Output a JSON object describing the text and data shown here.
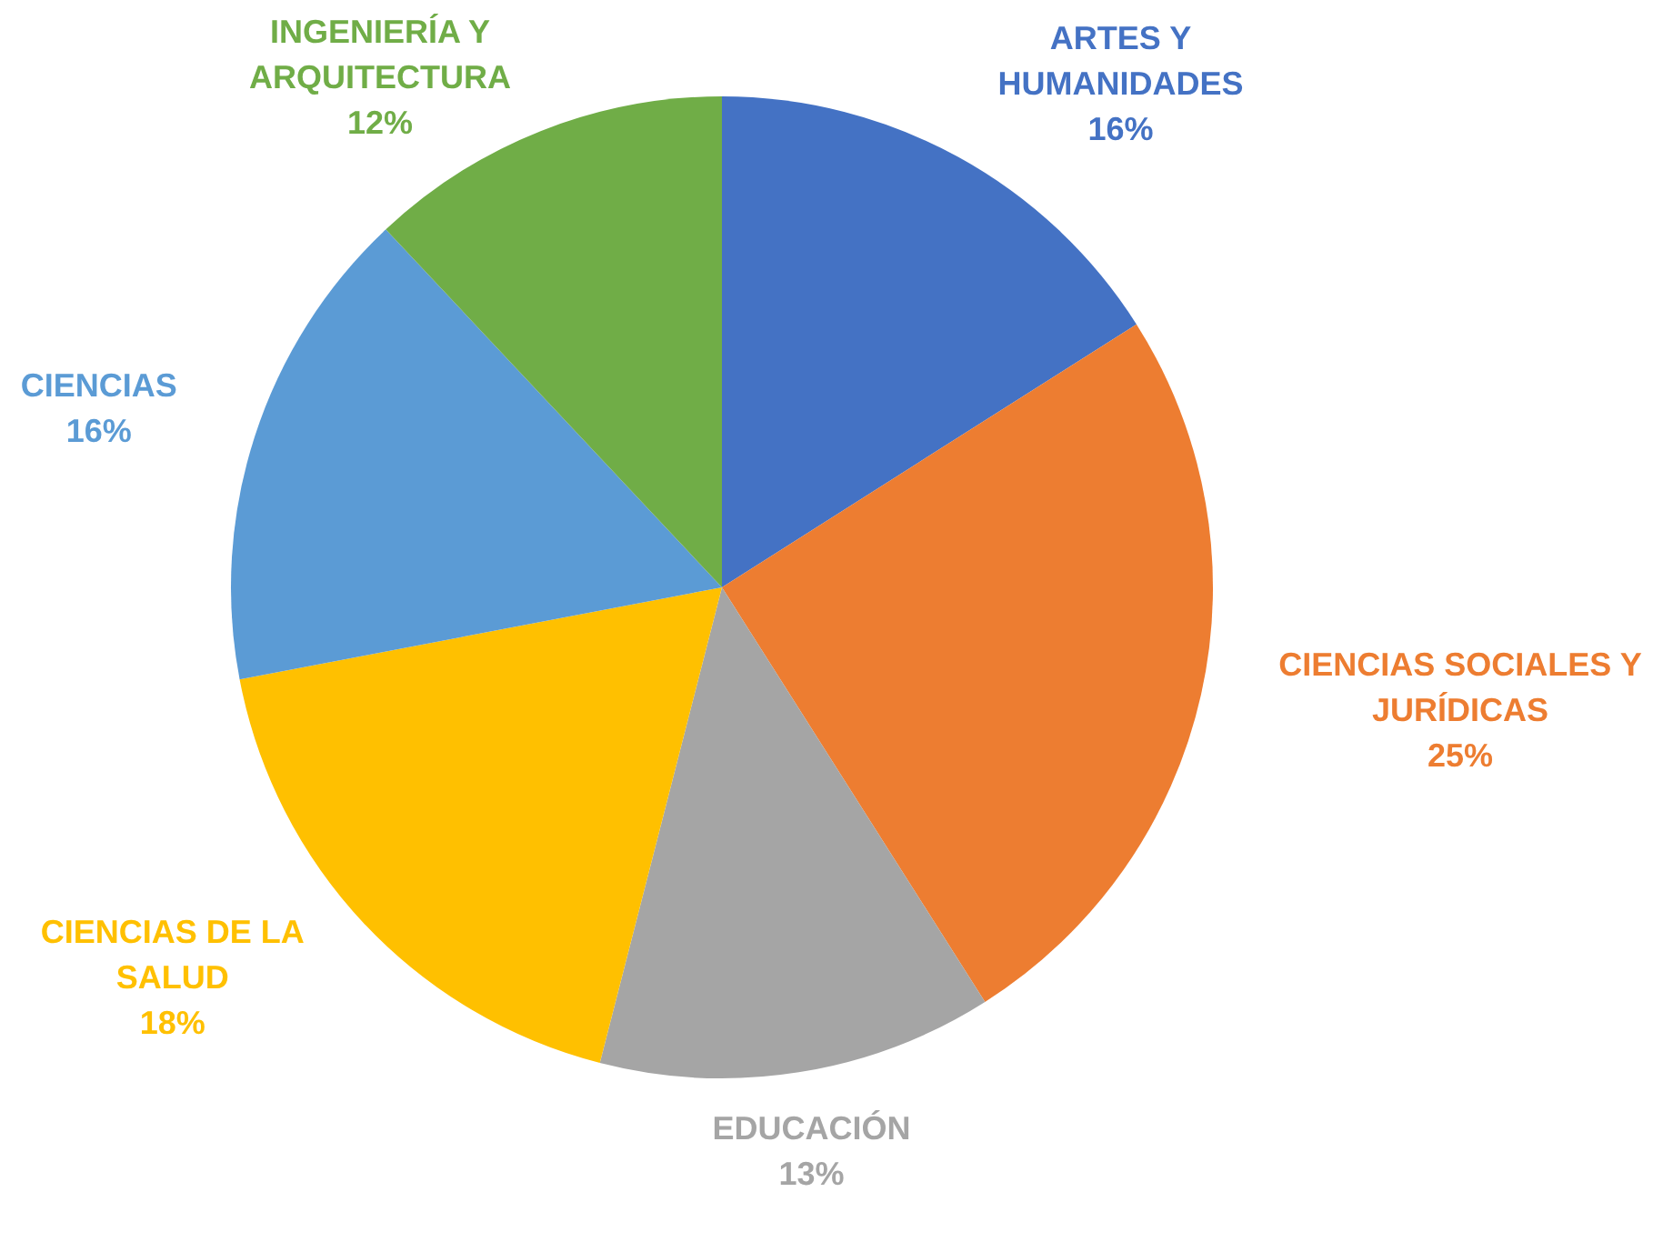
{
  "chart_data": {
    "type": "pie",
    "categories": [
      "ARTES Y HUMANIDADES",
      "CIENCIAS SOCIALES Y JURÍDICAS",
      "EDUCACIÓN",
      "CIENCIAS DE LA SALUD",
      "CIENCIAS",
      "INGENIERÍA Y ARQUITECTURA"
    ],
    "values": [
      16,
      25,
      13,
      18,
      16,
      12
    ],
    "value_labels": [
      "16%",
      "25%",
      "13%",
      "18%",
      "16%",
      "12%"
    ],
    "colors": [
      "#4472c4",
      "#ed7d31",
      "#a5a5a5",
      "#ffc000",
      "#5b9bd5",
      "#70ad47"
    ],
    "legend": false
  }
}
